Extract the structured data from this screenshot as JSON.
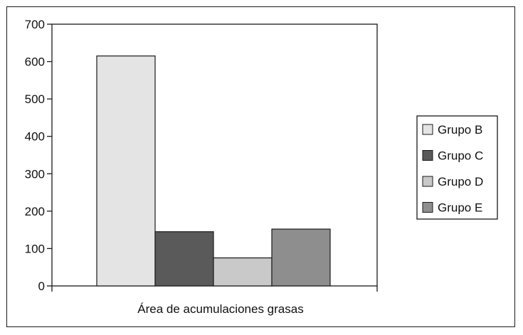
{
  "chart_data": {
    "type": "bar",
    "title": "",
    "xlabel": "Área de acumulaciones grasas",
    "ylabel": "",
    "categories": [
      "Área de acumulaciones grasas"
    ],
    "series": [
      {
        "name": "Grupo B",
        "values": [
          615
        ],
        "color": "#e4e4e4"
      },
      {
        "name": "Grupo C",
        "values": [
          145
        ],
        "color": "#5a5a5a"
      },
      {
        "name": "Grupo D",
        "values": [
          75
        ],
        "color": "#c9c9c9"
      },
      {
        "name": "Grupo E",
        "values": [
          152
        ],
        "color": "#8e8e8e"
      }
    ],
    "ylim": [
      0,
      700
    ],
    "yticks": [
      0,
      100,
      200,
      300,
      400,
      500,
      600,
      700
    ],
    "grid": false,
    "legend_position": "right"
  }
}
